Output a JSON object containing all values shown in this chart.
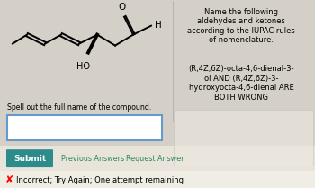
{
  "bg_color": "#d4d0c8",
  "title_text": "Name the following\naldehydes and ketones\naccording to the IUPAC rules\nof nomenclature.",
  "wrong_text": "(R,4Z,6Z)-octa-4,6-dienal-3-\nol AND (R,4Z,6Z)-3-\nhydroxyocta-4,6-dienal ARE\nBOTH WRONG",
  "spell_label": "Spell out the full name of the compound.",
  "submit_label": "Submit",
  "prev_answers": "Previous Answers",
  "req_answer": "Request Answer",
  "incorrect_text": "Incorrect; Try Again; One attempt remaining",
  "submit_bg": "#2e8b8b",
  "input_box_color": "#6699cc",
  "bottom_bar_color": "#e8e4dc",
  "incorrect_bar_color": "#f0ede5",
  "link_color": "#2e8b57",
  "wrong_box_color": "#ece9e0"
}
